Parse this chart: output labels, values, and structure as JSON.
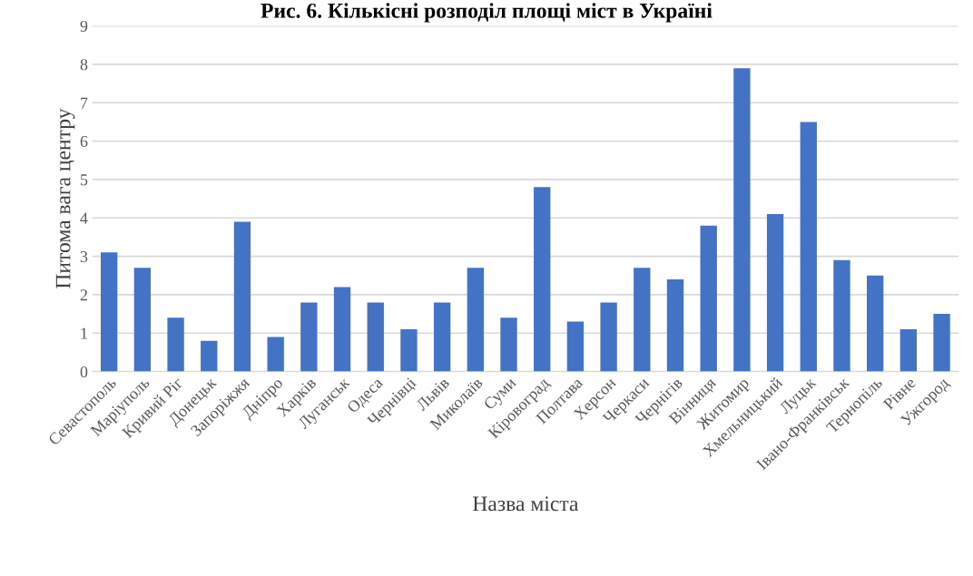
{
  "chart_data": {
    "type": "bar",
    "title": "Рис. 6. Кількісні розподіл площі міст в Україні",
    "xlabel": "Назва міста",
    "ylabel": "Питома вага центру",
    "categories": [
      "Севастополь",
      "Маріуполь",
      "Кривий Ріг",
      "Донецьк",
      "Запоріжжя",
      "Дніпро",
      "Харків",
      "Луганськ",
      "Одеса",
      "Чернівці",
      "Львів",
      "Миколаїв",
      "Суми",
      "Кіровоград",
      "Полтава",
      "Херсон",
      "Черкаси",
      "Чернігів",
      "Вінниця",
      "Житомир",
      "Хмельницький",
      "Луцьк",
      "Івано-Франківськ",
      "Тернопіль",
      "Рівне",
      "Ужгород"
    ],
    "values": [
      3.1,
      2.7,
      1.4,
      0.8,
      3.9,
      0.9,
      1.8,
      2.2,
      1.8,
      1.1,
      1.8,
      2.7,
      1.4,
      4.8,
      1.3,
      1.8,
      2.7,
      2.4,
      3.8,
      7.9,
      4.1,
      6.5,
      2.9,
      2.5,
      1.1,
      1.5
    ],
    "color": "#4472c4",
    "ylim": [
      0,
      9
    ],
    "yticks": [
      0,
      1,
      2,
      3,
      4,
      5,
      6,
      7,
      8,
      9
    ],
    "grid": "y"
  }
}
